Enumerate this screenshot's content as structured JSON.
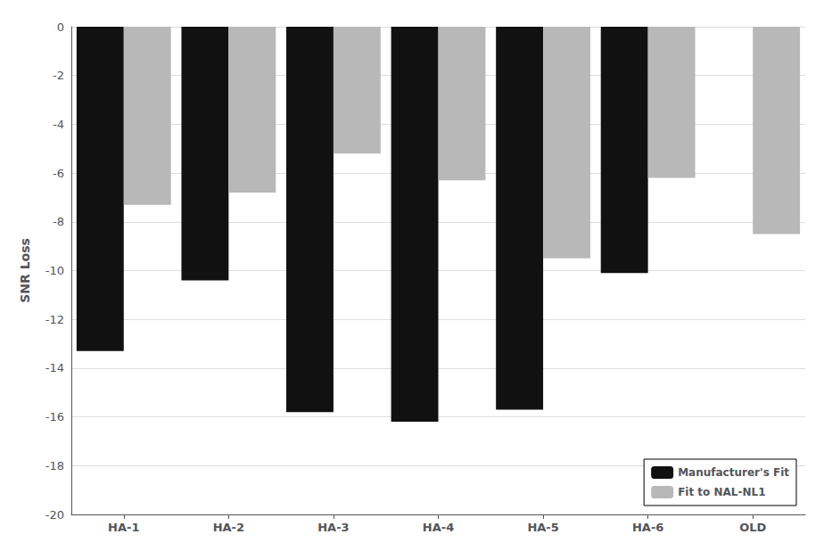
{
  "chart_data": {
    "type": "bar",
    "y_label": "SNR Loss",
    "categories": [
      "HA-1",
      "HA-2",
      "HA-3",
      "HA-4",
      "HA-5",
      "HA-6",
      "OLD"
    ],
    "series": [
      {
        "name": "Manufacturer's Fit",
        "color": "#111111",
        "values": [
          -13.3,
          -10.4,
          -15.8,
          -16.2,
          -15.7,
          -10.1,
          null
        ]
      },
      {
        "name": "Fit to NAL-NL1",
        "color": "#b8b8b8",
        "values": [
          -7.3,
          -6.8,
          -5.2,
          -6.3,
          -9.5,
          -6.2,
          -8.5
        ]
      }
    ],
    "ylim": [
      -20,
      0
    ],
    "yticks": [
      0,
      -2,
      -4,
      -6,
      -8,
      -10,
      -12,
      -14,
      -16,
      -18,
      -20
    ],
    "grid": true,
    "legend": "lower right"
  }
}
